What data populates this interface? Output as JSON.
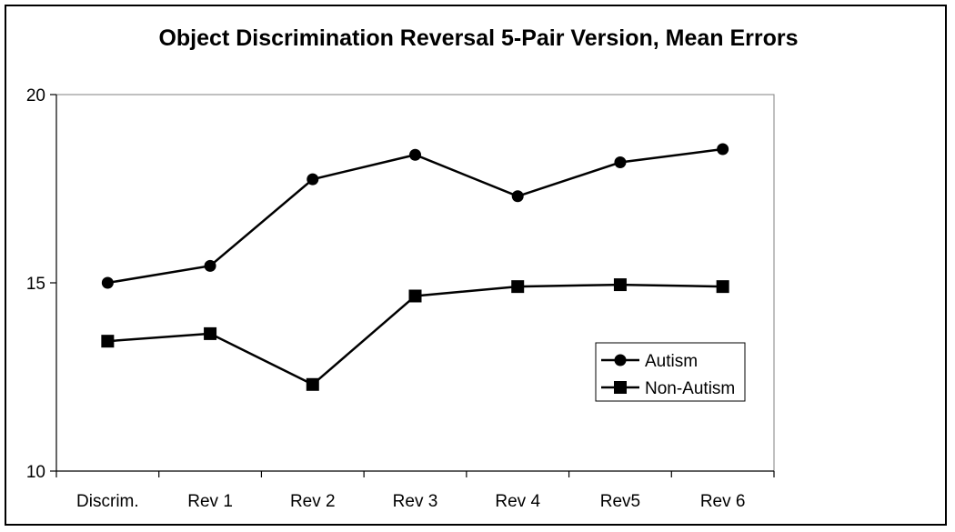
{
  "chart_data": {
    "type": "line",
    "title": "Object Discrimination Reversal 5-Pair Version, Mean Errors",
    "xlabel": "",
    "ylabel": "",
    "categories": [
      "Discrim.",
      "Rev 1",
      "Rev 2",
      "Rev 3",
      "Rev 4",
      "Rev5",
      "Rev 6"
    ],
    "ylim": [
      10,
      20
    ],
    "yticks": [
      10,
      15,
      20
    ],
    "grid": false,
    "legend_position": "right",
    "series": [
      {
        "name": "Autism",
        "marker": "circle",
        "color": "#000000",
        "values": [
          15.0,
          15.45,
          17.75,
          18.4,
          17.3,
          18.2,
          18.55
        ]
      },
      {
        "name": "Non-Autism",
        "marker": "square",
        "color": "#000000",
        "values": [
          13.45,
          13.65,
          12.3,
          14.65,
          14.9,
          14.95,
          14.9
        ]
      }
    ]
  }
}
